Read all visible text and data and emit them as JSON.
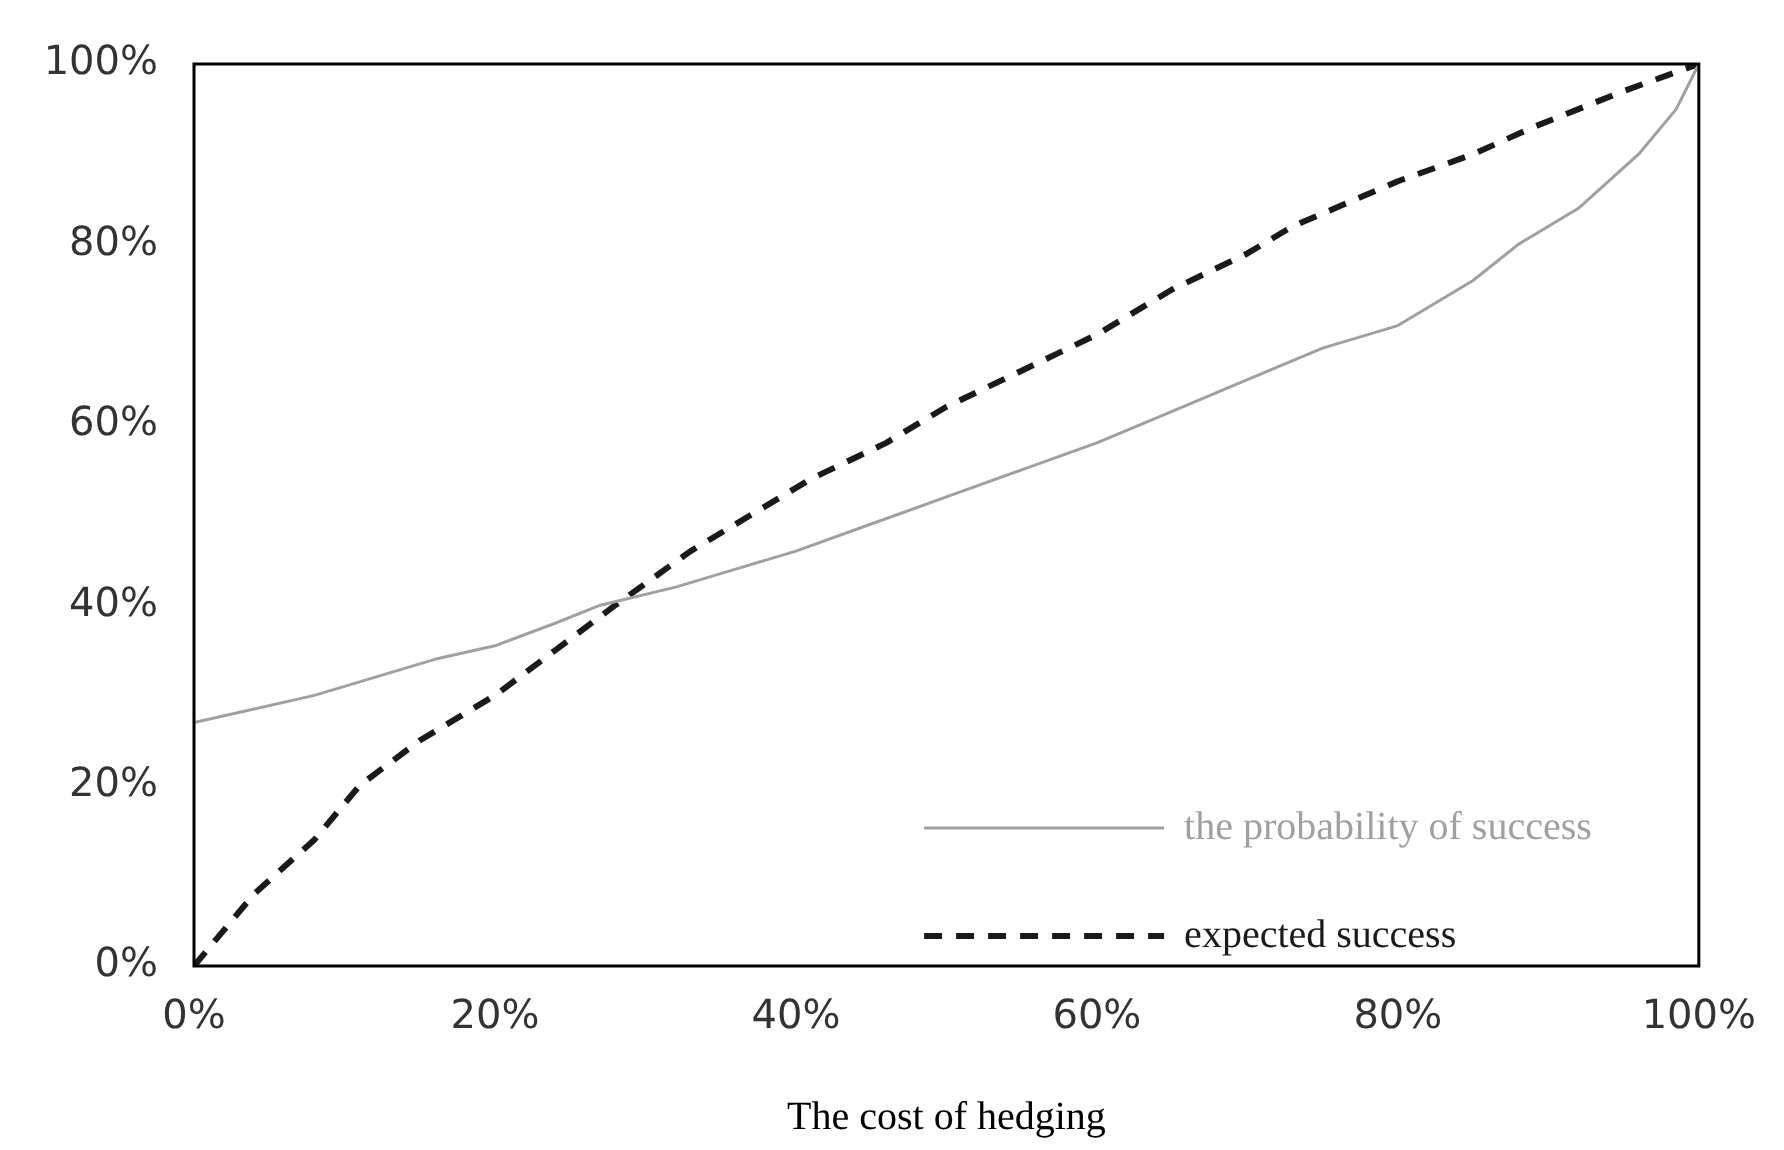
{
  "chart_data": {
    "type": "line",
    "xlabel": "The cost of hedging",
    "series": [
      {
        "name": "the probability of success",
        "color": "#a0a0a0",
        "line_style": "solid",
        "x": [
          0,
          4,
          8,
          12,
          16,
          20,
          24,
          27,
          32,
          36,
          40,
          45,
          50,
          55,
          60,
          65,
          70,
          75,
          80,
          85,
          88,
          92,
          96,
          98.5,
          100
        ],
        "values": [
          27,
          28.5,
          30,
          32,
          34,
          35.5,
          38,
          40,
          42,
          44,
          46,
          49,
          52,
          55,
          58,
          61.5,
          65,
          68.5,
          71,
          76,
          80,
          84,
          90,
          95,
          100
        ]
      },
      {
        "name": "expected success",
        "color": "#1a1a1a",
        "line_style": "dashed",
        "x": [
          0,
          2,
          4,
          8,
          11,
          15,
          20,
          24,
          28,
          33,
          37,
          41,
          46,
          50,
          55,
          60,
          65,
          70,
          73,
          80,
          85,
          89,
          95,
          100
        ],
        "values": [
          0,
          4,
          8,
          14,
          20,
          25,
          30,
          35,
          40,
          46,
          50,
          54,
          58,
          62,
          66,
          70,
          75,
          79,
          82,
          87,
          90,
          93,
          97,
          100
        ]
      }
    ],
    "xlim": [
      0,
      100
    ],
    "ylim": [
      0,
      100
    ],
    "xticks": [
      {
        "value": 0,
        "label": "0%"
      },
      {
        "value": 20,
        "label": "20%"
      },
      {
        "value": 40,
        "label": "40%"
      },
      {
        "value": 60,
        "label": "60%"
      },
      {
        "value": 80,
        "label": "80%"
      },
      {
        "value": 100,
        "label": "100%"
      }
    ],
    "yticks": [
      {
        "value": 0,
        "label": "0%"
      },
      {
        "value": 20,
        "label": "20%"
      },
      {
        "value": 40,
        "label": "40%"
      },
      {
        "value": 60,
        "label": "60%"
      },
      {
        "value": 80,
        "label": "80%"
      },
      {
        "value": 100,
        "label": "100%"
      }
    ],
    "grid": false,
    "legend": "bottom right",
    "marker": "none"
  }
}
